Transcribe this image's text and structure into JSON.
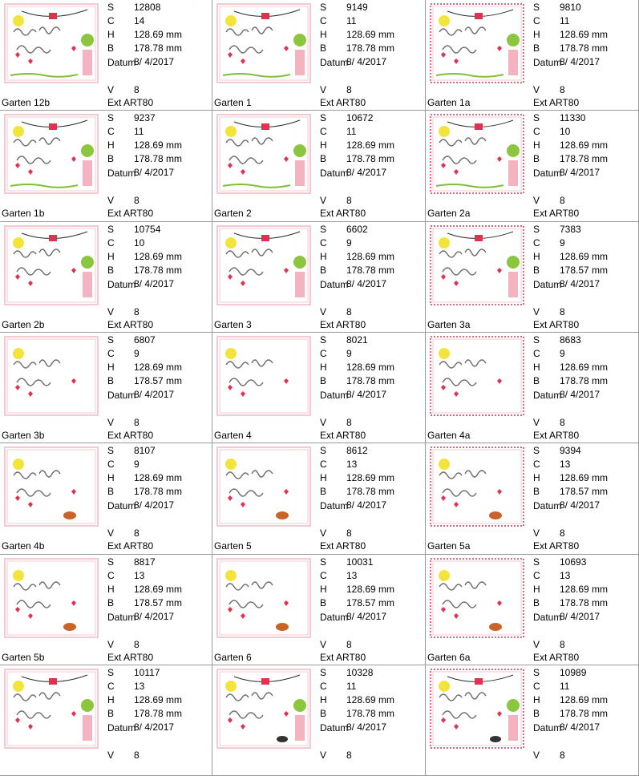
{
  "labels": {
    "s": "S",
    "c": "C",
    "h": "H",
    "b": "B",
    "date": "Datum",
    "v": "V",
    "ext": "Ext"
  },
  "colors": {
    "frame_light": "#f4c9d1",
    "frame_dark": "#d86b7d",
    "heart": "#e1314f",
    "sun": "#f3e43b",
    "grass": "#7fbf3a",
    "ball": "#8cc63f",
    "hedgehog": "#c8642a",
    "cat": "#333333",
    "text": "#6b6b6b",
    "bunting": "#2c2c2c"
  },
  "designs": [
    {
      "name": "Garten 12b",
      "s": "12808",
      "c": "14",
      "h": "128.69 mm",
      "b": "178.78 mm",
      "date": "8/ 4/2017",
      "v": "8",
      "ext": "ART80",
      "style": "pink"
    },
    {
      "name": "Garten 1",
      "s": "9149",
      "c": "11",
      "h": "128.69 mm",
      "b": "178.78 mm",
      "date": "8/ 4/2017",
      "v": "8",
      "ext": "ART80",
      "style": "pink"
    },
    {
      "name": "Garten 1a",
      "s": "9810",
      "c": "11",
      "h": "128.69 mm",
      "b": "178.78 mm",
      "date": "8/ 4/2017",
      "v": "8",
      "ext": "ART80",
      "style": "lace"
    },
    {
      "name": "Garten 1b",
      "s": "9237",
      "c": "11",
      "h": "128.69 mm",
      "b": "178.78 mm",
      "date": "8/ 4/2017",
      "v": "8",
      "ext": "ART80",
      "style": "pink"
    },
    {
      "name": "Garten 2",
      "s": "10672",
      "c": "11",
      "h": "128.69 mm",
      "b": "178.78 mm",
      "date": "8/ 4/2017",
      "v": "8",
      "ext": "ART80",
      "style": "pink"
    },
    {
      "name": "Garten 2a",
      "s": "11330",
      "c": "10",
      "h": "128.69 mm",
      "b": "178.78 mm",
      "date": "8/ 4/2017",
      "v": "8",
      "ext": "ART80",
      "style": "lace"
    },
    {
      "name": "Garten 2b",
      "s": "10754",
      "c": "10",
      "h": "128.69 mm",
      "b": "178.78 mm",
      "date": "8/ 4/2017",
      "v": "8",
      "ext": "ART80",
      "style": "pink"
    },
    {
      "name": "Garten 3",
      "s": "6602",
      "c": "9",
      "h": "128.69 mm",
      "b": "178.78 mm",
      "date": "8/ 4/2017",
      "v": "8",
      "ext": "ART80",
      "style": "plain"
    },
    {
      "name": "Garten 3a",
      "s": "7383",
      "c": "9",
      "h": "128.69 mm",
      "b": "178.57 mm",
      "date": "8/ 4/2017",
      "v": "8",
      "ext": "ART80",
      "style": "lace"
    },
    {
      "name": "Garten 3b",
      "s": "6807",
      "c": "9",
      "h": "128.69 mm",
      "b": "178.57 mm",
      "date": "8/ 4/2017",
      "v": "8",
      "ext": "ART80",
      "style": "pink"
    },
    {
      "name": "Garten 4",
      "s": "8021",
      "c": "9",
      "h": "128.69 mm",
      "b": "178.78 mm",
      "date": "8/ 4/2017",
      "v": "8",
      "ext": "ART80",
      "style": "plain"
    },
    {
      "name": "Garten 4a",
      "s": "8683",
      "c": "9",
      "h": "128.69 mm",
      "b": "178.78 mm",
      "date": "8/ 4/2017",
      "v": "8",
      "ext": "ART80",
      "style": "lace"
    },
    {
      "name": "Garten 4b",
      "s": "8107",
      "c": "9",
      "h": "128.69 mm",
      "b": "178.78 mm",
      "date": "8/ 4/2017",
      "v": "8",
      "ext": "ART80",
      "style": "pink"
    },
    {
      "name": "Garten 5",
      "s": "8612",
      "c": "13",
      "h": "128.69 mm",
      "b": "178.78 mm",
      "date": "8/ 4/2017",
      "v": "8",
      "ext": "ART80",
      "style": "pink"
    },
    {
      "name": "Garten 5a",
      "s": "9394",
      "c": "13",
      "h": "128.69 mm",
      "b": "178.57 mm",
      "date": "8/ 4/2017",
      "v": "8",
      "ext": "ART80",
      "style": "lace"
    },
    {
      "name": "Garten 5b",
      "s": "8817",
      "c": "13",
      "h": "128.69 mm",
      "b": "178.57 mm",
      "date": "8/ 4/2017",
      "v": "8",
      "ext": "ART80",
      "style": "pink"
    },
    {
      "name": "Garten 6",
      "s": "10031",
      "c": "13",
      "h": "128.69 mm",
      "b": "178.57 mm",
      "date": "8/ 4/2017",
      "v": "8",
      "ext": "ART80",
      "style": "pink"
    },
    {
      "name": "Garten 6a",
      "s": "10693",
      "c": "13",
      "h": "128.69 mm",
      "b": "178.78 mm",
      "date": "8/ 4/2017",
      "v": "8",
      "ext": "ART80",
      "style": "lace"
    },
    {
      "name": "",
      "s": "10117",
      "c": "13",
      "h": "128.69 mm",
      "b": "178.78 mm",
      "date": "8/ 4/2017",
      "v": "8",
      "ext": "",
      "style": "pink"
    },
    {
      "name": "",
      "s": "10328",
      "c": "11",
      "h": "128.69 mm",
      "b": "178.78 mm",
      "date": "8/ 4/2017",
      "v": "8",
      "ext": "",
      "style": "pink"
    },
    {
      "name": "",
      "s": "10989",
      "c": "11",
      "h": "128.69 mm",
      "b": "178.78 mm",
      "date": "8/ 4/2017",
      "v": "8",
      "ext": "",
      "style": "lace"
    }
  ]
}
